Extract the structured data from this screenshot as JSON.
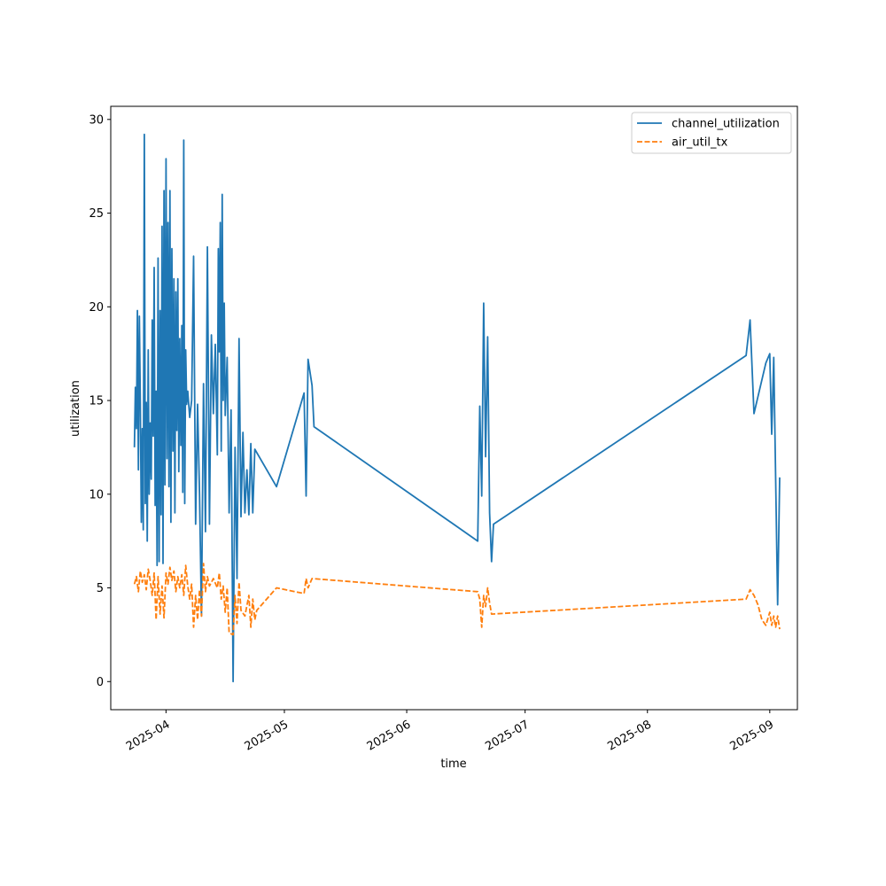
{
  "chart_data": {
    "type": "line",
    "title": "",
    "xlabel": "time",
    "ylabel": "utilization",
    "x_axis": {
      "type": "date",
      "range": [
        "2025-03-18",
        "2025-09-08"
      ],
      "ticks": [
        "2025-04-01",
        "2025-05-01",
        "2025-06-01",
        "2025-07-01",
        "2025-08-01",
        "2025-09-01"
      ],
      "tick_labels": [
        "2025-04",
        "2025-05",
        "2025-06",
        "2025-07",
        "2025-08",
        "2025-09"
      ]
    },
    "y_axis": {
      "range": [
        -1.5,
        30.7
      ],
      "ticks": [
        0,
        5,
        10,
        15,
        20,
        25,
        30
      ],
      "tick_labels": [
        "0",
        "5",
        "10",
        "15",
        "20",
        "25",
        "30"
      ]
    },
    "grid": false,
    "legend": {
      "position": "top-right"
    },
    "series": [
      {
        "name": "channel_utilization",
        "color": "#1f77b4",
        "style": "solid",
        "points": [
          [
            "2025-03-24T00:00",
            12.5
          ],
          [
            "2025-03-24T06:00",
            15.7
          ],
          [
            "2025-03-24T12:00",
            13.5
          ],
          [
            "2025-03-24T18:00",
            19.8
          ],
          [
            "2025-03-25T00:00",
            11.3
          ],
          [
            "2025-03-25T06:00",
            19.5
          ],
          [
            "2025-03-25T12:00",
            14.8
          ],
          [
            "2025-03-25T18:00",
            8.5
          ],
          [
            "2025-03-26T00:00",
            13.5
          ],
          [
            "2025-03-26T06:00",
            8.1
          ],
          [
            "2025-03-26T12:00",
            29.2
          ],
          [
            "2025-03-26T18:00",
            9.5
          ],
          [
            "2025-03-27T00:00",
            14.9
          ],
          [
            "2025-03-27T06:00",
            7.5
          ],
          [
            "2025-03-27T12:00",
            17.7
          ],
          [
            "2025-03-27T18:00",
            10.0
          ],
          [
            "2025-03-28T00:00",
            13.8
          ],
          [
            "2025-03-28T06:00",
            10.8
          ],
          [
            "2025-03-28T12:00",
            19.3
          ],
          [
            "2025-03-28T18:00",
            13.1
          ],
          [
            "2025-03-29T00:00",
            22.1
          ],
          [
            "2025-03-29T06:00",
            9.4
          ],
          [
            "2025-03-29T12:00",
            15.5
          ],
          [
            "2025-03-29T18:00",
            6.2
          ],
          [
            "2025-03-30T00:00",
            22.6
          ],
          [
            "2025-03-30T06:00",
            6.4
          ],
          [
            "2025-03-30T12:00",
            19.8
          ],
          [
            "2025-03-30T18:00",
            8.9
          ],
          [
            "2025-03-31T00:00",
            24.3
          ],
          [
            "2025-03-31T06:00",
            6.3
          ],
          [
            "2025-03-31T12:00",
            26.2
          ],
          [
            "2025-03-31T18:00",
            10.5
          ],
          [
            "2025-04-01T00:00",
            27.9
          ],
          [
            "2025-04-01T06:00",
            11.9
          ],
          [
            "2025-04-01T12:00",
            24.5
          ],
          [
            "2025-04-01T18:00",
            10.4
          ],
          [
            "2025-04-02T00:00",
            26.2
          ],
          [
            "2025-04-02T06:00",
            8.5
          ],
          [
            "2025-04-02T12:00",
            23.1
          ],
          [
            "2025-04-02T18:00",
            12.3
          ],
          [
            "2025-04-03T00:00",
            21.5
          ],
          [
            "2025-04-03T06:00",
            9.0
          ],
          [
            "2025-04-03T12:00",
            20.8
          ],
          [
            "2025-04-03T18:00",
            13.4
          ],
          [
            "2025-04-04T00:00",
            21.5
          ],
          [
            "2025-04-04T06:00",
            11.2
          ],
          [
            "2025-04-04T12:00",
            18.3
          ],
          [
            "2025-04-04T18:00",
            12.6
          ],
          [
            "2025-04-05T00:00",
            19.0
          ],
          [
            "2025-04-05T06:00",
            10.1
          ],
          [
            "2025-04-05T12:00",
            28.9
          ],
          [
            "2025-04-05T18:00",
            9.5
          ],
          [
            "2025-04-06T00:00",
            17.7
          ],
          [
            "2025-04-06T06:00",
            14.8
          ],
          [
            "2025-04-06T12:00",
            15.5
          ],
          [
            "2025-04-07T00:00",
            14.1
          ],
          [
            "2025-04-07T12:00",
            15.0
          ],
          [
            "2025-04-08T00:00",
            22.7
          ],
          [
            "2025-04-08T12:00",
            8.4
          ],
          [
            "2025-04-09T00:00",
            14.8
          ],
          [
            "2025-04-09T12:00",
            10.0
          ],
          [
            "2025-04-10T00:00",
            3.5
          ],
          [
            "2025-04-10T12:00",
            15.9
          ],
          [
            "2025-04-11T00:00",
            8.0
          ],
          [
            "2025-04-11T12:00",
            23.2
          ],
          [
            "2025-04-12T00:00",
            8.4
          ],
          [
            "2025-04-12T12:00",
            18.5
          ],
          [
            "2025-04-13T00:00",
            14.3
          ],
          [
            "2025-04-13T12:00",
            18.0
          ],
          [
            "2025-04-14T00:00",
            12.1
          ],
          [
            "2025-04-14T06:00",
            23.1
          ],
          [
            "2025-04-14T12:00",
            17.6
          ],
          [
            "2025-04-14T18:00",
            24.5
          ],
          [
            "2025-04-15T00:00",
            12.3
          ],
          [
            "2025-04-15T06:00",
            26.0
          ],
          [
            "2025-04-15T12:00",
            15.0
          ],
          [
            "2025-04-15T18:00",
            20.2
          ],
          [
            "2025-04-16T00:00",
            14.2
          ],
          [
            "2025-04-16T12:00",
            17.3
          ],
          [
            "2025-04-17T00:00",
            9.0
          ],
          [
            "2025-04-17T12:00",
            14.5
          ],
          [
            "2025-04-18T00:00",
            0.0
          ],
          [
            "2025-04-18T12:00",
            12.5
          ],
          [
            "2025-04-19T00:00",
            5.5
          ],
          [
            "2025-04-19T12:00",
            18.3
          ],
          [
            "2025-04-20T00:00",
            8.8
          ],
          [
            "2025-04-20T12:00",
            13.3
          ],
          [
            "2025-04-21T00:00",
            9.0
          ],
          [
            "2025-04-21T12:00",
            11.3
          ],
          [
            "2025-04-22T00:00",
            8.9
          ],
          [
            "2025-04-22T12:00",
            12.7
          ],
          [
            "2025-04-23T00:00",
            9.0
          ],
          [
            "2025-04-23T12:00",
            12.4
          ],
          [
            "2025-04-29T00:00",
            10.4
          ],
          [
            "2025-05-06T00:00",
            15.4
          ],
          [
            "2025-05-06T12:00",
            9.9
          ],
          [
            "2025-05-07T00:00",
            17.2
          ],
          [
            "2025-05-08T00:00",
            15.8
          ],
          [
            "2025-05-08T12:00",
            13.6
          ],
          [
            "2025-06-19T00:00",
            7.5
          ],
          [
            "2025-06-19T12:00",
            14.7
          ],
          [
            "2025-06-20T00:00",
            9.9
          ],
          [
            "2025-06-20T12:00",
            20.2
          ],
          [
            "2025-06-21T00:00",
            12.0
          ],
          [
            "2025-06-21T12:00",
            18.4
          ],
          [
            "2025-06-22T00:00",
            9.0
          ],
          [
            "2025-06-22T12:00",
            6.4
          ],
          [
            "2025-06-23T00:00",
            8.4
          ],
          [
            "2025-08-26T00:00",
            17.4
          ],
          [
            "2025-08-27T00:00",
            19.3
          ],
          [
            "2025-08-28T00:00",
            14.3
          ],
          [
            "2025-08-31T00:00",
            17.0
          ],
          [
            "2025-09-01T00:00",
            17.5
          ],
          [
            "2025-09-01T12:00",
            13.2
          ],
          [
            "2025-09-02T00:00",
            17.3
          ],
          [
            "2025-09-03T00:00",
            4.1
          ],
          [
            "2025-09-03T12:00",
            10.9
          ]
        ]
      },
      {
        "name": "air_util_tx",
        "color": "#ff7f0e",
        "style": "dashed",
        "points": [
          [
            "2025-03-24T00:00",
            5.2
          ],
          [
            "2025-03-24T12:00",
            5.6
          ],
          [
            "2025-03-25T00:00",
            4.8
          ],
          [
            "2025-03-25T12:00",
            5.9
          ],
          [
            "2025-03-26T00:00",
            5.3
          ],
          [
            "2025-03-26T12:00",
            5.7
          ],
          [
            "2025-03-27T00:00",
            4.9
          ],
          [
            "2025-03-27T12:00",
            6.0
          ],
          [
            "2025-03-28T00:00",
            5.4
          ],
          [
            "2025-03-28T12:00",
            4.6
          ],
          [
            "2025-03-29T00:00",
            5.8
          ],
          [
            "2025-03-29T12:00",
            3.3
          ],
          [
            "2025-03-30T00:00",
            5.6
          ],
          [
            "2025-03-30T12:00",
            3.6
          ],
          [
            "2025-03-31T00:00",
            5.1
          ],
          [
            "2025-03-31T12:00",
            3.4
          ],
          [
            "2025-04-01T00:00",
            5.8
          ],
          [
            "2025-04-01T12:00",
            5.2
          ],
          [
            "2025-04-02T00:00",
            6.1
          ],
          [
            "2025-04-02T12:00",
            5.4
          ],
          [
            "2025-04-03T00:00",
            5.9
          ],
          [
            "2025-04-03T12:00",
            4.8
          ],
          [
            "2025-04-04T00:00",
            5.6
          ],
          [
            "2025-04-04T12:00",
            5.0
          ],
          [
            "2025-04-05T00:00",
            5.7
          ],
          [
            "2025-04-05T12:00",
            4.6
          ],
          [
            "2025-04-06T00:00",
            6.2
          ],
          [
            "2025-04-06T12:00",
            5.1
          ],
          [
            "2025-04-07T00:00",
            4.4
          ],
          [
            "2025-04-07T12:00",
            5.2
          ],
          [
            "2025-04-08T00:00",
            2.9
          ],
          [
            "2025-04-08T12:00",
            4.6
          ],
          [
            "2025-04-09T00:00",
            3.3
          ],
          [
            "2025-04-09T12:00",
            4.9
          ],
          [
            "2025-04-10T00:00",
            3.5
          ],
          [
            "2025-04-10T12:00",
            6.3
          ],
          [
            "2025-04-11T00:00",
            4.8
          ],
          [
            "2025-04-11T12:00",
            5.6
          ],
          [
            "2025-04-12T00:00",
            5.1
          ],
          [
            "2025-04-13T00:00",
            5.5
          ],
          [
            "2025-04-14T00:00",
            5.0
          ],
          [
            "2025-04-14T12:00",
            5.8
          ],
          [
            "2025-04-15T00:00",
            4.4
          ],
          [
            "2025-04-15T12:00",
            5.1
          ],
          [
            "2025-04-16T00:00",
            3.7
          ],
          [
            "2025-04-16T12:00",
            5.0
          ],
          [
            "2025-04-17T00:00",
            2.6
          ],
          [
            "2025-04-18T00:00",
            2.5
          ],
          [
            "2025-04-18T12:00",
            4.6
          ],
          [
            "2025-04-19T00:00",
            3.1
          ],
          [
            "2025-04-19T12:00",
            5.3
          ],
          [
            "2025-04-20T00:00",
            3.8
          ],
          [
            "2025-04-21T00:00",
            3.5
          ],
          [
            "2025-04-22T00:00",
            4.6
          ],
          [
            "2025-04-22T12:00",
            2.9
          ],
          [
            "2025-04-23T00:00",
            4.4
          ],
          [
            "2025-04-23T12:00",
            3.3
          ],
          [
            "2025-04-24T00:00",
            3.8
          ],
          [
            "2025-04-29T00:00",
            5.0
          ],
          [
            "2025-05-06T00:00",
            4.7
          ],
          [
            "2025-05-06T12:00",
            5.5
          ],
          [
            "2025-05-07T00:00",
            5.0
          ],
          [
            "2025-05-08T00:00",
            5.5
          ],
          [
            "2025-06-19T00:00",
            4.8
          ],
          [
            "2025-06-19T12:00",
            4.4
          ],
          [
            "2025-06-20T00:00",
            2.9
          ],
          [
            "2025-06-20T12:00",
            4.6
          ],
          [
            "2025-06-21T00:00",
            4.0
          ],
          [
            "2025-06-21T12:00",
            5.0
          ],
          [
            "2025-06-22T00:00",
            4.2
          ],
          [
            "2025-06-22T12:00",
            3.6
          ],
          [
            "2025-08-26T00:00",
            4.4
          ],
          [
            "2025-08-27T00:00",
            4.9
          ],
          [
            "2025-08-28T00:00",
            4.6
          ],
          [
            "2025-08-29T00:00",
            4.1
          ],
          [
            "2025-08-30T00:00",
            3.3
          ],
          [
            "2025-08-31T00:00",
            3.0
          ],
          [
            "2025-09-01T00:00",
            3.7
          ],
          [
            "2025-09-01T12:00",
            3.0
          ],
          [
            "2025-09-02T00:00",
            3.5
          ],
          [
            "2025-09-02T12:00",
            2.9
          ],
          [
            "2025-09-03T00:00",
            3.5
          ],
          [
            "2025-09-03T12:00",
            2.8
          ]
        ]
      }
    ]
  }
}
